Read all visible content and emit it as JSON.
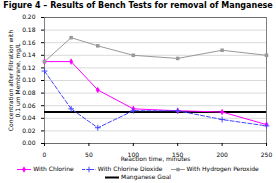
{
  "chart_data": {
    "type": "line",
    "title": "Figure 4 – Results of Bench Tests for removal of Manganese",
    "xlabel": "Reaction time, minutes",
    "ylabel": "Concentration after Filtration with\n0.1 um Membrane, mg/L",
    "x": [
      0,
      30,
      60,
      100,
      150,
      200,
      250
    ],
    "series": [
      {
        "name": "With Chlorine",
        "color": "#ff00ff",
        "marker": "diamond",
        "line_style": "solid",
        "values": [
          0.13,
          0.13,
          0.085,
          0.055,
          0.052,
          0.05,
          0.03
        ]
      },
      {
        "name": "With Chlorine Dioxide",
        "color": "#4444ff",
        "marker": "plus",
        "line_style": "dashed",
        "values": [
          0.115,
          0.055,
          0.025,
          0.052,
          0.052,
          0.038,
          0.028
        ]
      },
      {
        "name": "With Hydrogen Peroxide",
        "color": "#999999",
        "marker": "square",
        "line_style": "solid",
        "values": [
          0.13,
          0.168,
          0.155,
          0.14,
          0.135,
          0.148,
          0.14
        ]
      }
    ],
    "goal": {
      "name": "Manganese Goal",
      "value": 0.05,
      "color": "#000000"
    },
    "xlim": [
      0,
      250
    ],
    "ylim": [
      0,
      0.2
    ],
    "xticks": [
      0,
      50,
      100,
      150,
      200,
      250
    ],
    "yticks": [
      {
        "value": 0,
        "label": "0.00"
      },
      {
        "value": 0.02,
        "label": "0.02"
      },
      {
        "value": 0.04,
        "label": "0.04"
      },
      {
        "value": 0.06,
        "label": "0.06"
      },
      {
        "value": 0.08,
        "label": "0.08"
      },
      {
        "value": 0.1,
        "label": "0.10"
      },
      {
        "value": 0.12,
        "label": "0.12"
      },
      {
        "value": 0.14,
        "label": "0.14"
      },
      {
        "value": 0.16,
        "label": "0.16"
      },
      {
        "value": 0.18,
        "label": "0.18"
      },
      {
        "value": 0.2,
        "label": "0.20"
      }
    ],
    "grid": "y",
    "legend": "bottom"
  }
}
